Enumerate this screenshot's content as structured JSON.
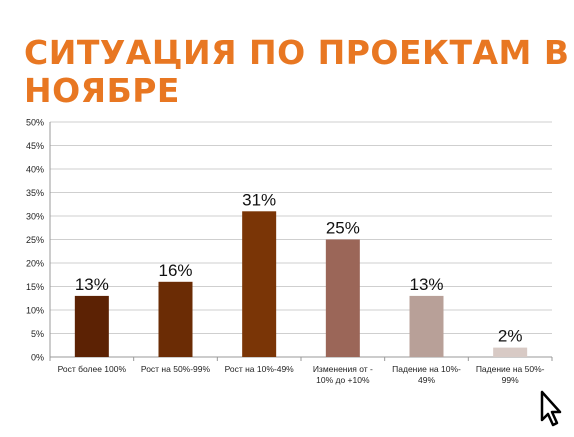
{
  "slide": {
    "title_line1": "СИТУАЦИЯ ПО ПРОЕКТАМ В",
    "title_line2": "НОЯБРЕ"
  },
  "chart_data": {
    "type": "bar",
    "title": "",
    "xlabel": "",
    "ylabel": "",
    "ylim": [
      0,
      50
    ],
    "y_ticks": [
      "0%",
      "5%",
      "10%",
      "15%",
      "20%",
      "25%",
      "30%",
      "35%",
      "40%",
      "45%",
      "50%"
    ],
    "grid": true,
    "legend": "none",
    "categories": [
      [
        "Рост более 100%"
      ],
      [
        "Рост на 50%-99%"
      ],
      [
        "Рост на 10%-49%"
      ],
      [
        "Изменения от -",
        "10% до +10%"
      ],
      [
        "Падение на 10%-",
        "49%"
      ],
      [
        "Падение на 50%-",
        "99%"
      ]
    ],
    "values": [
      13,
      16,
      31,
      25,
      13,
      2
    ],
    "data_labels": [
      "13%",
      "16%",
      "31%",
      "25%",
      "13%",
      "2%"
    ],
    "bar_colors": [
      "#5c2204",
      "#6b2c05",
      "#7a3506",
      "#9b6658",
      "#b8a098",
      "#d8cac5"
    ]
  }
}
